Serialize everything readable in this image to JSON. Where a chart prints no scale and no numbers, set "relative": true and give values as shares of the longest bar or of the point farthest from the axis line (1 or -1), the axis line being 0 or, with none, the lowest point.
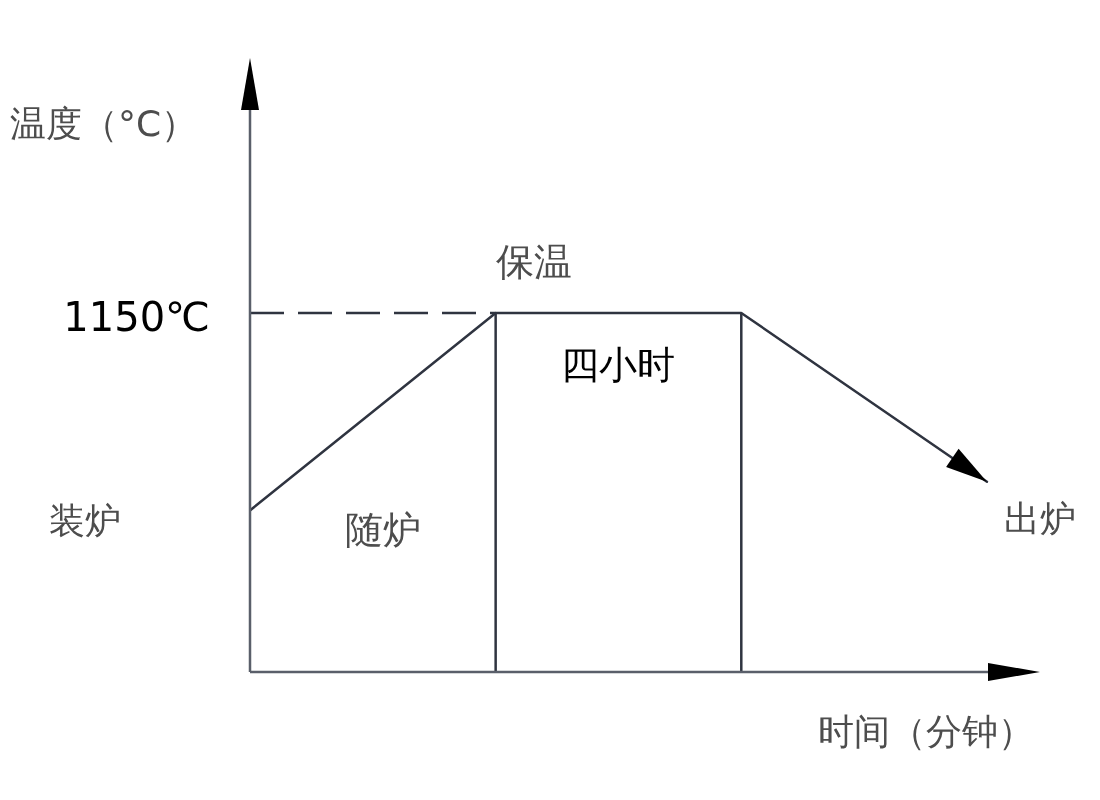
{
  "chart_data": {
    "type": "line",
    "relative": true,
    "xlabel": "时间（分钟）",
    "ylabel": "温度（°C）",
    "categories": [
      null,
      null,
      null,
      null
    ],
    "series": [
      {
        "color": "#2f3440",
        "values": [
          0.45,
          1,
          1,
          0.53
        ]
      }
    ],
    "ref_lines": [
      {
        "axis": "y",
        "value": 1,
        "label": "1150℃",
        "line_style": "dashed",
        "color": "#2f3440"
      }
    ],
    "annotations": [
      "保温",
      "四小时",
      "装炉",
      "随炉",
      "出炉"
    ],
    "legend": false
  }
}
